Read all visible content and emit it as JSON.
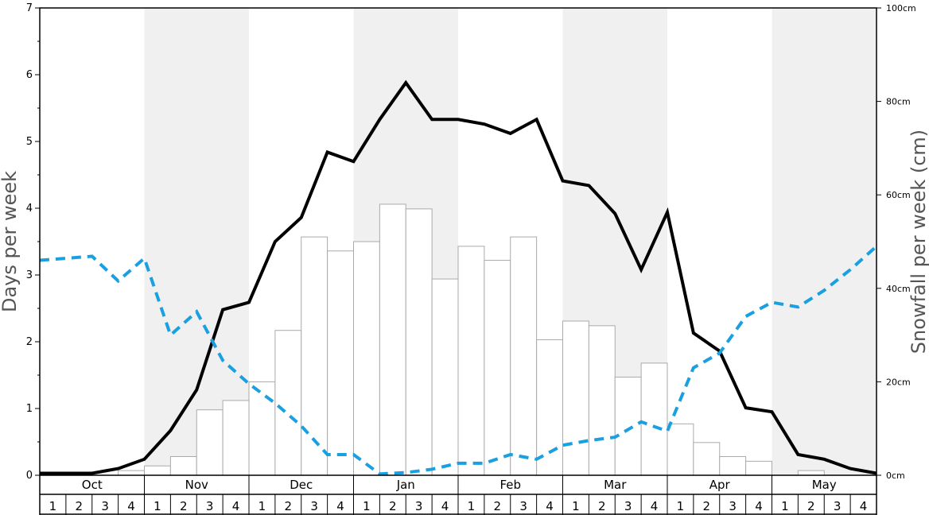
{
  "chart_data": {
    "type": "bar",
    "months": [
      "Oct",
      "Nov",
      "Dec",
      "Jan",
      "Feb",
      "Mar",
      "Apr",
      "May"
    ],
    "weeks": [
      "1",
      "2",
      "3",
      "4"
    ],
    "left_axis": {
      "label": "Days per week",
      "ylim": [
        0,
        7
      ],
      "ticks": [
        "0",
        "1",
        "2",
        "3",
        "4",
        "5",
        "6",
        "7"
      ]
    },
    "right_axis": {
      "label": "Snowfall per week (cm)",
      "ylim": [
        0,
        100
      ],
      "ticks": [
        "0cm",
        "20cm",
        "40cm",
        "60cm",
        "80cm",
        "100cm"
      ]
    },
    "grid": false,
    "series": [
      {
        "kind": "bar",
        "axis": "right",
        "unit": "cm",
        "values": [
          0,
          0,
          0,
          1,
          2,
          4,
          14,
          16,
          20,
          31,
          51,
          48,
          50,
          58,
          57,
          42,
          49,
          46,
          51,
          29,
          33,
          32,
          21,
          24,
          11,
          7,
          4,
          3,
          0,
          1,
          0,
          0
        ]
      },
      {
        "kind": "line",
        "axis": "left",
        "style": "solid",
        "color": "#000000",
        "values": [
          0.03,
          0.03,
          0.03,
          0.1,
          0.24,
          0.67,
          1.28,
          2.48,
          2.59,
          3.5,
          3.86,
          4.84,
          4.7,
          5.33,
          5.88,
          5.33,
          5.33,
          5.26,
          5.12,
          5.33,
          4.41,
          4.34,
          3.92,
          3.08,
          3.94,
          2.13,
          1.86,
          1.01,
          0.95,
          0.31,
          0.24,
          0.1,
          0.03
        ]
      },
      {
        "kind": "line",
        "axis": "left",
        "style": "dashed",
        "color": "#1a9fe0",
        "values": [
          3.22,
          3.25,
          3.28,
          2.91,
          3.25,
          2.1,
          2.45,
          1.72,
          1.37,
          1.08,
          0.74,
          0.31,
          0.31,
          0.02,
          0.04,
          0.09,
          0.18,
          0.18,
          0.31,
          0.24,
          0.45,
          0.52,
          0.57,
          0.8,
          0.66,
          1.61,
          1.83,
          2.38,
          2.59,
          2.52,
          2.77,
          3.08,
          3.43
        ]
      }
    ]
  }
}
